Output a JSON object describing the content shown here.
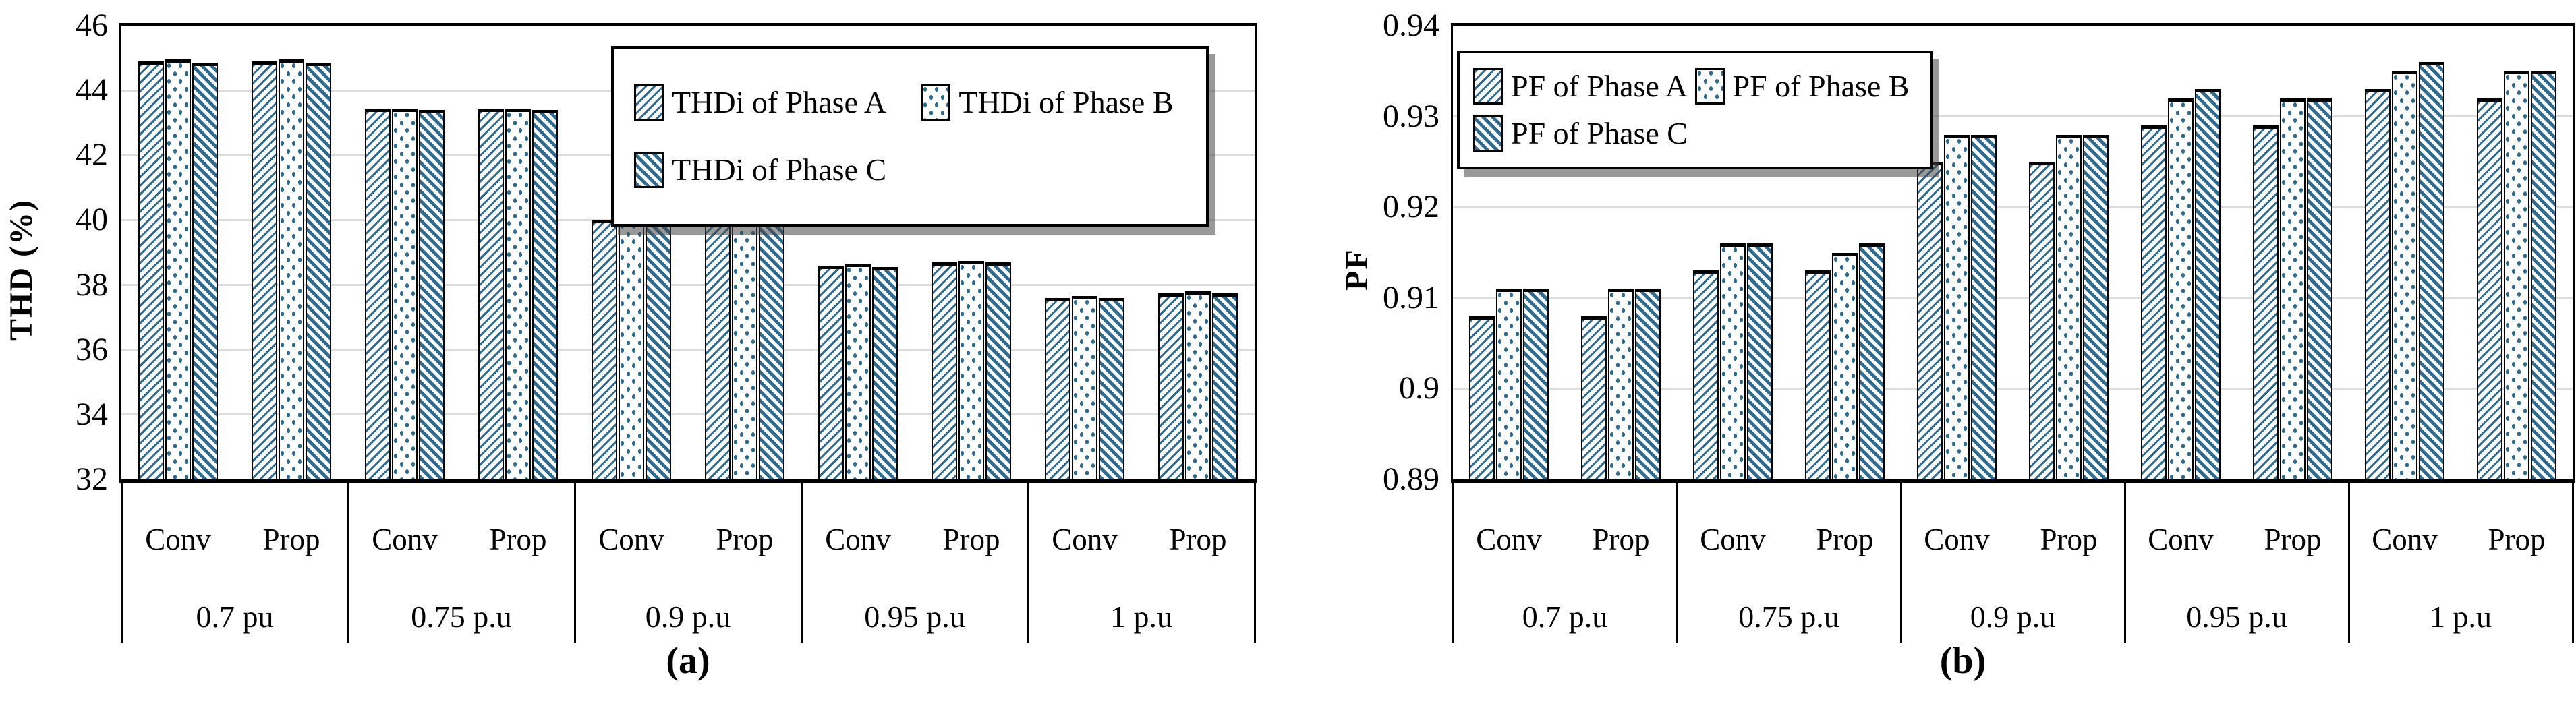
{
  "colors": {
    "hatch_blue": "#2e6b90",
    "gridline": "#dcdcdc",
    "frame": "#000000",
    "background": "#ffffff"
  },
  "chart_data": [
    {
      "type": "bar",
      "caption": "(a)",
      "ylabel": "THD (%)",
      "ylim": [
        32,
        46
      ],
      "yticks": [
        "46",
        "44",
        "42",
        "40",
        "38",
        "36",
        "34",
        "32"
      ],
      "grid": "horizontal",
      "legend_position": "top-right",
      "legend": [
        "THDi of Phase A",
        "THDi of Phase B",
        "THDi of Phase C"
      ],
      "categories": [
        "0.7 pu",
        "0.75 p.u",
        "0.9 p.u",
        "0.95 p.u",
        "1 p.u"
      ],
      "subcategories": [
        "Conv",
        "Prop"
      ],
      "series": [
        {
          "name": "THDi of Phase A",
          "pattern": "diagonal-forward",
          "conv": [
            44.9,
            43.45,
            40.0,
            38.6,
            37.6
          ],
          "prop": [
            44.9,
            43.45,
            40.0,
            38.7,
            37.75
          ]
        },
        {
          "name": "THDi of Phase B",
          "pattern": "dots",
          "conv": [
            44.95,
            43.45,
            40.0,
            38.65,
            37.65
          ],
          "prop": [
            44.95,
            43.45,
            40.05,
            38.75,
            37.8
          ]
        },
        {
          "name": "THDi of Phase C",
          "pattern": "diagonal-back",
          "conv": [
            44.85,
            43.4,
            39.95,
            38.55,
            37.6
          ],
          "prop": [
            44.85,
            43.4,
            40.0,
            38.7,
            37.75
          ]
        }
      ]
    },
    {
      "type": "bar",
      "caption": "(b)",
      "ylabel": "PF",
      "ylim": [
        0.89,
        0.94
      ],
      "yticks": [
        "0.94",
        "0.93",
        "0.92",
        "0.91",
        "0.9",
        "0.89"
      ],
      "grid": "horizontal",
      "legend_position": "top-left",
      "legend": [
        "PF of Phase A",
        "PF of Phase B",
        "PF of Phase C"
      ],
      "categories": [
        "0.7 p.u",
        "0.75 p.u",
        "0.9 p.u",
        "0.95 p.u",
        "1 p.u"
      ],
      "subcategories": [
        "Conv",
        "Prop"
      ],
      "series": [
        {
          "name": "PF of Phase A",
          "pattern": "diagonal-forward",
          "conv": [
            0.908,
            0.913,
            0.925,
            0.929,
            0.933
          ],
          "prop": [
            0.908,
            0.913,
            0.925,
            0.929,
            0.932
          ]
        },
        {
          "name": "PF of Phase B",
          "pattern": "dots",
          "conv": [
            0.911,
            0.916,
            0.928,
            0.932,
            0.935
          ],
          "prop": [
            0.911,
            0.915,
            0.928,
            0.932,
            0.935
          ]
        },
        {
          "name": "PF of Phase C",
          "pattern": "diagonal-back",
          "conv": [
            0.911,
            0.916,
            0.928,
            0.933,
            0.936
          ],
          "prop": [
            0.911,
            0.916,
            0.928,
            0.932,
            0.935
          ]
        }
      ]
    }
  ]
}
